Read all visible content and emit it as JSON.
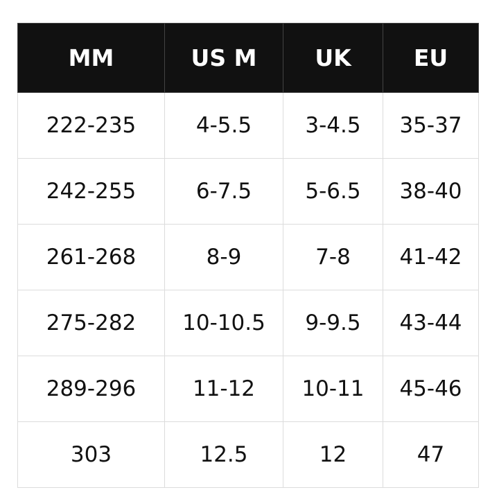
{
  "table": {
    "header": [
      "MM",
      "US M",
      "UK",
      "EU"
    ],
    "rows": [
      [
        "222-235",
        "4-5.5",
        "3-4.5",
        "35-37"
      ],
      [
        "242-255",
        "6-7.5",
        "5-6.5",
        "38-40"
      ],
      [
        "261-268",
        "8-9",
        "7-8",
        "41-42"
      ],
      [
        "275-282",
        "10-10.5",
        "9-9.5",
        "43-44"
      ],
      [
        "289-296",
        "11-12",
        "10-11",
        "45-46"
      ],
      [
        "303",
        "12.5",
        "12",
        "47"
      ]
    ]
  }
}
